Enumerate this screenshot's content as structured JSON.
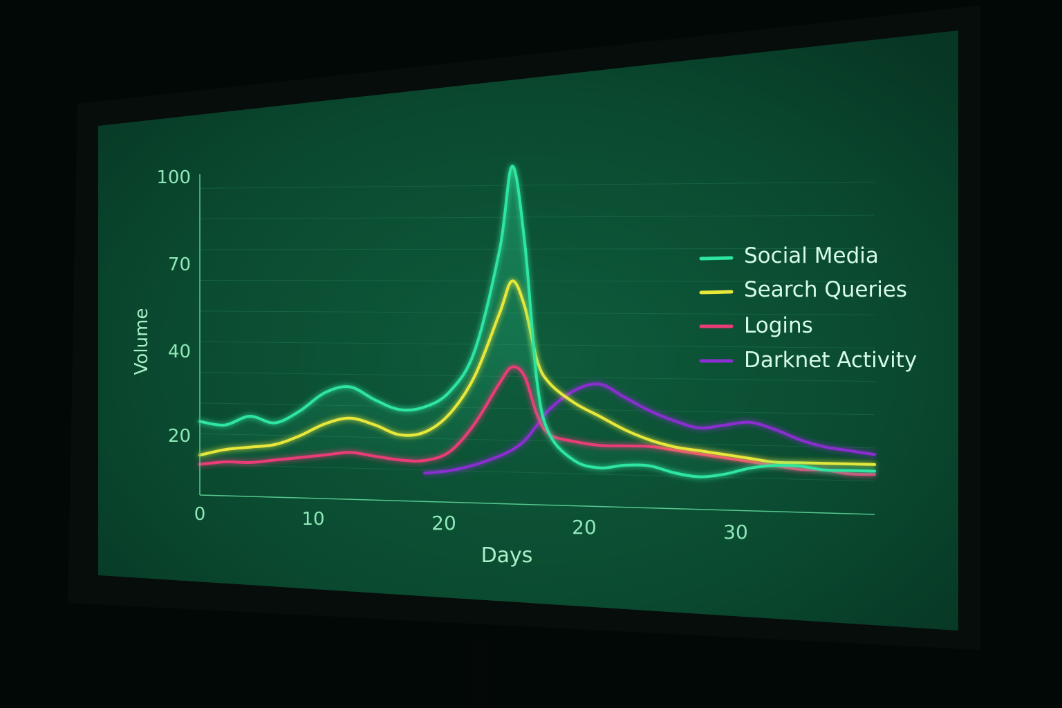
{
  "chart_data": {
    "type": "line",
    "title": "",
    "xlabel": "Days",
    "ylabel": "Volume",
    "x_tick_labels": [
      "0",
      "10",
      "20",
      "20",
      "30"
    ],
    "y_tick_labels": [
      "20",
      "40",
      "70",
      "100"
    ],
    "x": [
      0,
      2,
      4,
      6,
      8,
      10,
      12,
      14,
      16,
      18,
      20,
      22,
      24,
      25,
      26,
      27,
      28,
      30,
      32,
      34,
      36,
      38,
      40,
      42,
      44,
      46,
      48,
      50,
      52,
      54
    ],
    "grid": true,
    "legend_position": "right",
    "series": [
      {
        "name": "Social Media",
        "color": "#2ee6a0",
        "values": [
          24,
          23,
          26,
          24,
          28,
          34,
          36,
          32,
          29,
          30,
          35,
          48,
          80,
          106,
          82,
          38,
          22,
          14,
          12,
          13,
          13,
          11,
          10,
          11,
          13,
          14,
          14,
          13,
          13,
          13
        ]
      },
      {
        "name": "Search Queries",
        "color": "#e8e83a",
        "values": [
          13,
          15,
          16,
          17,
          20,
          24,
          26,
          24,
          21,
          22,
          28,
          40,
          60,
          70,
          62,
          45,
          38,
          32,
          28,
          24,
          21,
          19,
          18,
          17,
          16,
          15,
          15,
          15,
          15,
          15
        ]
      },
      {
        "name": "Logins",
        "color": "#ea3c78",
        "values": [
          10,
          11,
          11,
          12,
          13,
          14,
          15,
          14,
          13,
          13,
          16,
          25,
          38,
          43,
          40,
          28,
          22,
          20,
          19,
          19,
          19,
          18,
          17,
          16,
          15,
          14,
          13,
          13,
          12,
          12
        ]
      },
      {
        "name": "Darknet Activity",
        "color": "#8a2fd0",
        "values": [
          null,
          null,
          null,
          null,
          null,
          null,
          null,
          null,
          null,
          9,
          10,
          12,
          15,
          17,
          20,
          25,
          30,
          36,
          38,
          34,
          30,
          27,
          25,
          26,
          27,
          25,
          22,
          20,
          19,
          18
        ]
      }
    ]
  }
}
